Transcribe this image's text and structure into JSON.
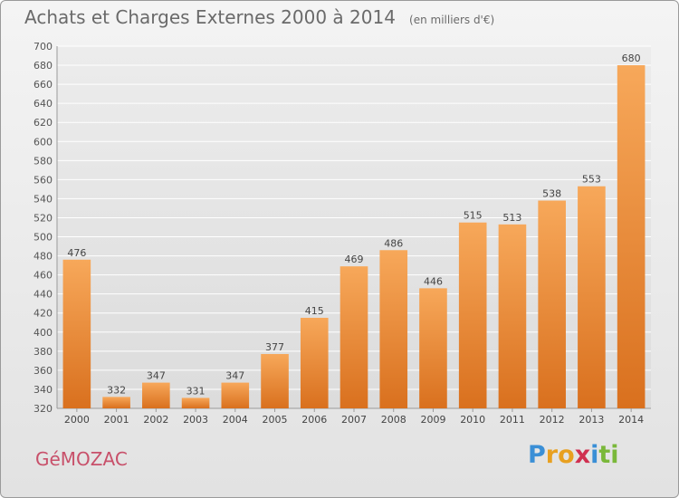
{
  "header": {
    "title": "Achats et Charges Externes 2000 à 2014",
    "subtitle": "(en milliers d'€)"
  },
  "footer": {
    "city": "GéMOZAC",
    "logo_letters": [
      {
        "ch": "P",
        "color": "#3a8fd6"
      },
      {
        "ch": "r",
        "color": "#e8a020"
      },
      {
        "ch": "o",
        "color": "#e8a020"
      },
      {
        "ch": "x",
        "color": "#d03050"
      },
      {
        "ch": "i",
        "color": "#3a8fd6"
      },
      {
        "ch": "t",
        "color": "#7ab83a"
      },
      {
        "ch": "i",
        "color": "#7ab83a"
      }
    ]
  },
  "chart_data": {
    "type": "bar",
    "categories": [
      "2000",
      "2001",
      "2002",
      "2003",
      "2004",
      "2005",
      "2006",
      "2007",
      "2008",
      "2009",
      "2010",
      "2011",
      "2012",
      "2013",
      "2014"
    ],
    "values": [
      476,
      332,
      347,
      331,
      347,
      377,
      415,
      469,
      486,
      446,
      515,
      513,
      538,
      553,
      680
    ],
    "ylim": [
      320,
      700
    ],
    "yticks": [
      320,
      340,
      360,
      380,
      400,
      420,
      440,
      460,
      480,
      500,
      520,
      540,
      560,
      580,
      600,
      620,
      640,
      660,
      680,
      700
    ],
    "grid": true,
    "bar_color": "#f0923a",
    "bar_color_light": "#f7a85a",
    "bar_color_dark": "#d9701e"
  }
}
